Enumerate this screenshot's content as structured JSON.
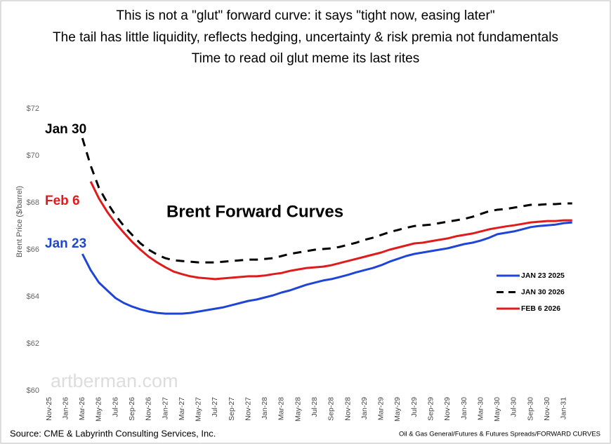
{
  "chart_data": {
    "type": "line",
    "title": [
      "This is not a \"glut\" forward curve: it says \"tight now, easing later\"",
      "The tail has little liquidity, reflects hedging, uncertainty & risk premia not fundamentals",
      "Time to read oil glut meme its last rites"
    ],
    "inner_title": "Brent Forward Curves",
    "y_label": "Brent Price ($/barrel)",
    "annotations": {
      "jan30": "Jan 30",
      "feb6": "Feb 6",
      "jan23": "Jan 23"
    },
    "watermark": "artberman.com",
    "source": "Source: CME & Labyrinth Consulting Services, Inc.",
    "path_note": "Oil & Gas General/Futures & Futures Spreads/FORWARD CURVES",
    "categories": [
      "Nov-25",
      null,
      "Jan-26",
      null,
      "Mar-26",
      null,
      "May-26",
      null,
      "Jul-26",
      null,
      "Sep-26",
      null,
      "Nov-26",
      null,
      "Jan-27",
      null,
      "Mar-27",
      null,
      "May-27",
      null,
      "Jul-27",
      null,
      "Sep-27",
      null,
      "Nov-27",
      null,
      "Jan-28",
      null,
      "Mar-28",
      null,
      "May-28",
      null,
      "Jul-28",
      null,
      "Sep-28",
      null,
      "Nov-28",
      null,
      "Jan-29",
      null,
      "Mar-29",
      null,
      "May-29",
      null,
      "Jul-29",
      null,
      "Sep-29",
      null,
      "Nov-29",
      null,
      "Jan-30",
      null,
      "Mar-30",
      null,
      "May-30",
      null,
      "Jul-30",
      null,
      "Sep-30",
      null,
      "Nov-30",
      null,
      "Jan-31",
      null
    ],
    "series": [
      {
        "name": "JAN 23 2025",
        "color": "#1f45d6",
        "dashed": false,
        "values": [
          null,
          null,
          null,
          null,
          65.82,
          65.13,
          64.6,
          64.27,
          63.94,
          63.73,
          63.58,
          63.46,
          63.37,
          63.31,
          63.28,
          63.28,
          63.28,
          63.31,
          63.37,
          63.43,
          63.49,
          63.55,
          63.64,
          63.73,
          63.82,
          63.88,
          63.97,
          64.06,
          64.18,
          64.27,
          64.39,
          64.51,
          64.6,
          64.69,
          64.75,
          64.84,
          64.93,
          65.04,
          65.13,
          65.22,
          65.34,
          65.49,
          65.61,
          65.73,
          65.82,
          65.88,
          65.94,
          66.0,
          66.06,
          66.15,
          66.24,
          66.3,
          66.39,
          66.51,
          66.66,
          66.72,
          66.78,
          66.87,
          66.96,
          67.01,
          67.04,
          67.07,
          67.13,
          67.16
        ]
      },
      {
        "name": "JAN 30 2026",
        "color": "#000000",
        "dashed": true,
        "values": [
          null,
          null,
          null,
          null,
          70.75,
          69.58,
          68.63,
          68.0,
          67.46,
          67.01,
          66.63,
          66.27,
          66.0,
          65.79,
          65.64,
          65.55,
          65.52,
          65.49,
          65.46,
          65.46,
          65.46,
          65.49,
          65.52,
          65.55,
          65.58,
          65.58,
          65.61,
          65.64,
          65.73,
          65.82,
          65.88,
          65.94,
          66.0,
          66.03,
          66.06,
          66.12,
          66.21,
          66.3,
          66.42,
          66.51,
          66.63,
          66.75,
          66.84,
          66.93,
          67.01,
          67.04,
          67.07,
          67.13,
          67.19,
          67.25,
          67.31,
          67.4,
          67.52,
          67.64,
          67.7,
          67.73,
          67.79,
          67.85,
          67.91,
          67.91,
          67.94,
          67.94,
          67.97,
          67.97
        ]
      },
      {
        "name": "FEB 6 2026",
        "color": "#e01b1b",
        "dashed": false,
        "values": [
          null,
          null,
          null,
          null,
          null,
          68.9,
          68.18,
          67.61,
          67.13,
          66.72,
          66.33,
          66.0,
          65.7,
          65.46,
          65.25,
          65.07,
          64.96,
          64.87,
          64.81,
          64.78,
          64.75,
          64.78,
          64.81,
          64.84,
          64.87,
          64.87,
          64.9,
          64.96,
          65.01,
          65.1,
          65.16,
          65.22,
          65.25,
          65.28,
          65.34,
          65.43,
          65.52,
          65.61,
          65.7,
          65.79,
          65.88,
          66.0,
          66.09,
          66.18,
          66.27,
          66.3,
          66.36,
          66.42,
          66.48,
          66.57,
          66.63,
          66.69,
          66.78,
          66.87,
          66.93,
          66.99,
          67.04,
          67.1,
          67.16,
          67.19,
          67.22,
          67.22,
          67.25,
          67.25
        ]
      }
    ],
    "ylim": [
      60,
      74
    ],
    "yticks": [
      {
        "value": 60,
        "label": "$60"
      },
      {
        "value": 62,
        "label": "$62"
      },
      {
        "value": 64,
        "label": "$64"
      },
      {
        "value": 66,
        "label": "$66"
      },
      {
        "value": 68,
        "label": "$68"
      },
      {
        "value": 70,
        "label": "$70"
      },
      {
        "value": 72,
        "label": "$72"
      }
    ],
    "grid": false
  }
}
